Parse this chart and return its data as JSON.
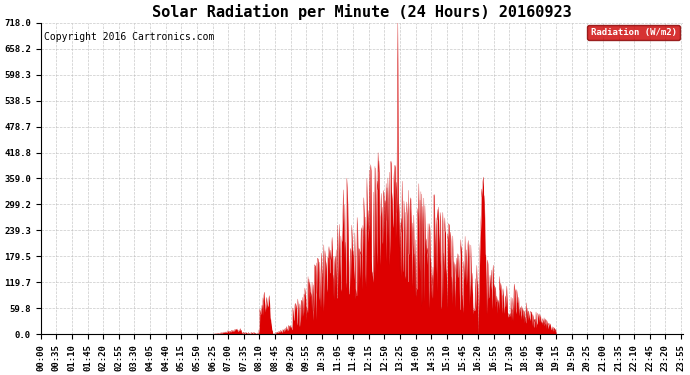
{
  "title": "Solar Radiation per Minute (24 Hours) 20160923",
  "copyright": "Copyright 2016 Cartronics.com",
  "legend_label": "Radiation (W/m2)",
  "legend_bg": "#cc0000",
  "legend_text_color": "#ffffff",
  "fill_color": "#dd0000",
  "line_color": "#cc0000",
  "background_color": "#ffffff",
  "grid_color": "#bbbbbb",
  "yticks": [
    0.0,
    59.8,
    119.7,
    179.5,
    239.3,
    299.2,
    359.0,
    418.8,
    478.7,
    538.5,
    598.3,
    658.2,
    718.0
  ],
  "ymax": 718.0,
  "ymin": 0.0,
  "title_fontsize": 11,
  "axis_fontsize": 6.5,
  "copyright_fontsize": 7
}
